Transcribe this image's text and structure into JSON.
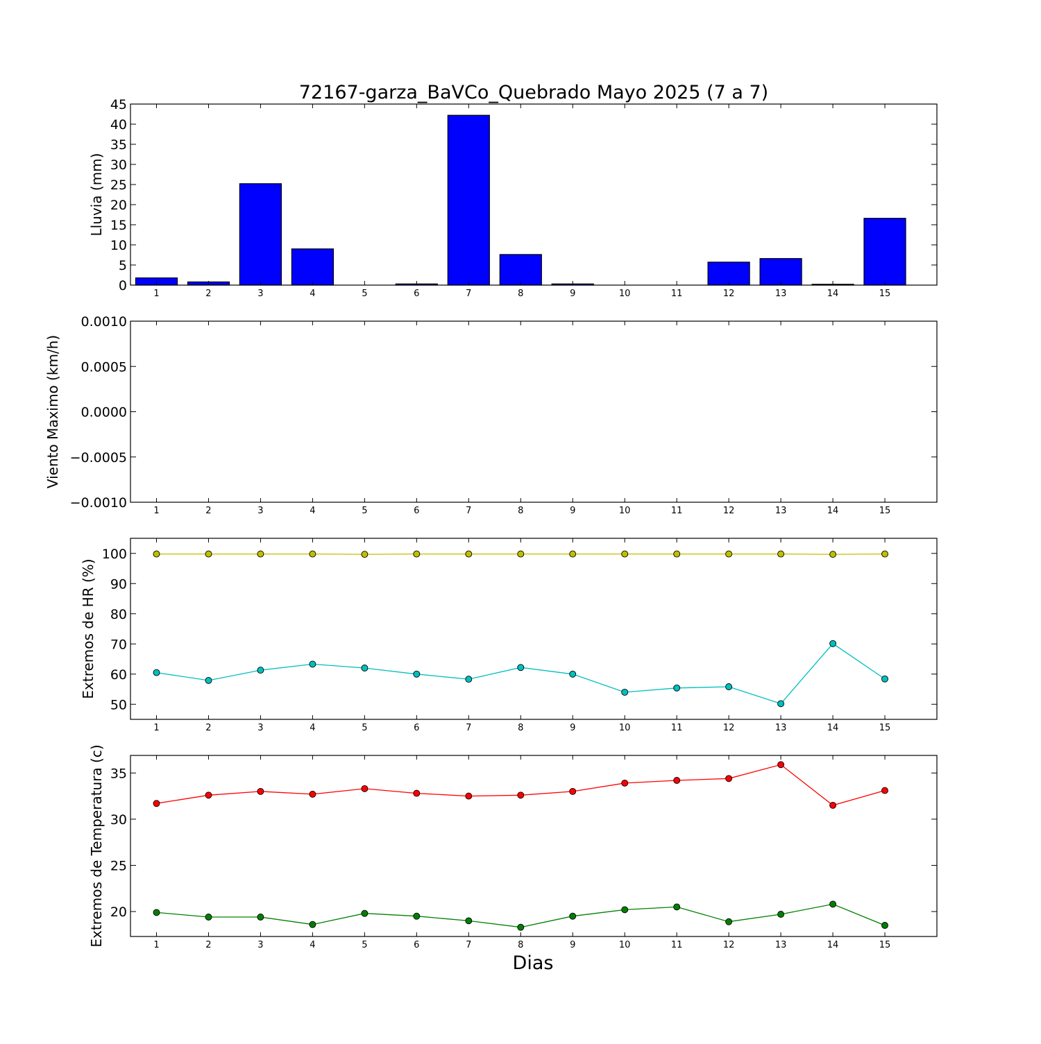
{
  "title": "72167-garza_BaVCo_Quebrado Mayo 2025  (7 a 7)",
  "xlabel": "Dias",
  "chart_data": [
    {
      "type": "bar",
      "ylabel": "Lluvia (mm)",
      "ylim": [
        0,
        45
      ],
      "yticks": [
        "0",
        "5",
        "10",
        "15",
        "20",
        "25",
        "30",
        "35",
        "40",
        "45"
      ],
      "yticks_values": [
        0,
        5,
        10,
        15,
        20,
        25,
        30,
        35,
        40,
        45
      ],
      "categories": [
        "1",
        "2",
        "3",
        "4",
        "5",
        "6",
        "7",
        "8",
        "9",
        "10",
        "11",
        "12",
        "13",
        "14",
        "15"
      ],
      "values": [
        1.8,
        0.8,
        25.2,
        9.0,
        0.0,
        0.3,
        42.2,
        7.6,
        0.3,
        0.0,
        0.0,
        5.7,
        6.6,
        0.2,
        16.6
      ],
      "color": "#0000ff"
    },
    {
      "type": "line",
      "ylabel": "Viento Maximo (km/h)",
      "ylim": [
        -0.001,
        0.001
      ],
      "yticks": [
        "0.0010",
        "0.0005",
        "0.0000",
        "−0.0005",
        "−0.0010"
      ],
      "yticks_values": [
        0.001,
        0.0005,
        0,
        -0.0005,
        -0.001
      ],
      "categories": [
        "1",
        "2",
        "3",
        "4",
        "5",
        "6",
        "7",
        "8",
        "9",
        "10",
        "11",
        "12",
        "13",
        "14",
        "15"
      ],
      "series": []
    },
    {
      "type": "line",
      "ylabel": "Extremos de HR (%)",
      "ylim": [
        45,
        105
      ],
      "yticks": [
        "50",
        "60",
        "70",
        "80",
        "90",
        "100"
      ],
      "yticks_values": [
        50,
        60,
        70,
        80,
        90,
        100
      ],
      "categories": [
        "1",
        "2",
        "3",
        "4",
        "5",
        "6",
        "7",
        "8",
        "9",
        "10",
        "11",
        "12",
        "13",
        "14",
        "15"
      ],
      "series": [
        {
          "color": "#bfbf00",
          "values": [
            99.8,
            99.8,
            99.8,
            99.8,
            99.7,
            99.8,
            99.8,
            99.8,
            99.8,
            99.8,
            99.8,
            99.8,
            99.8,
            99.7,
            99.8
          ]
        },
        {
          "color": "#00bfbf",
          "values": [
            60.5,
            57.9,
            61.3,
            63.3,
            62.0,
            60.0,
            58.3,
            62.2,
            60.0,
            54.0,
            55.4,
            55.8,
            50.2,
            70.1,
            58.4
          ]
        }
      ]
    },
    {
      "type": "line",
      "ylabel": "Extremos de Temperatura (c)",
      "ylim": [
        17.3,
        36.9
      ],
      "yticks": [
        "20",
        "25",
        "30",
        "35"
      ],
      "yticks_values": [
        20,
        25,
        30,
        35
      ],
      "categories": [
        "1",
        "2",
        "3",
        "4",
        "5",
        "6",
        "7",
        "8",
        "9",
        "10",
        "11",
        "12",
        "13",
        "14",
        "15"
      ],
      "series": [
        {
          "color": "#ff0000",
          "values": [
            31.7,
            32.6,
            33.0,
            32.7,
            33.3,
            32.8,
            32.5,
            32.6,
            33.0,
            33.9,
            34.2,
            34.4,
            35.9,
            31.5,
            33.1
          ]
        },
        {
          "color": "#008000",
          "values": [
            19.9,
            19.4,
            19.4,
            18.6,
            19.8,
            19.5,
            19.0,
            18.3,
            19.5,
            20.2,
            20.5,
            18.9,
            19.7,
            20.8,
            18.5
          ]
        }
      ]
    }
  ]
}
